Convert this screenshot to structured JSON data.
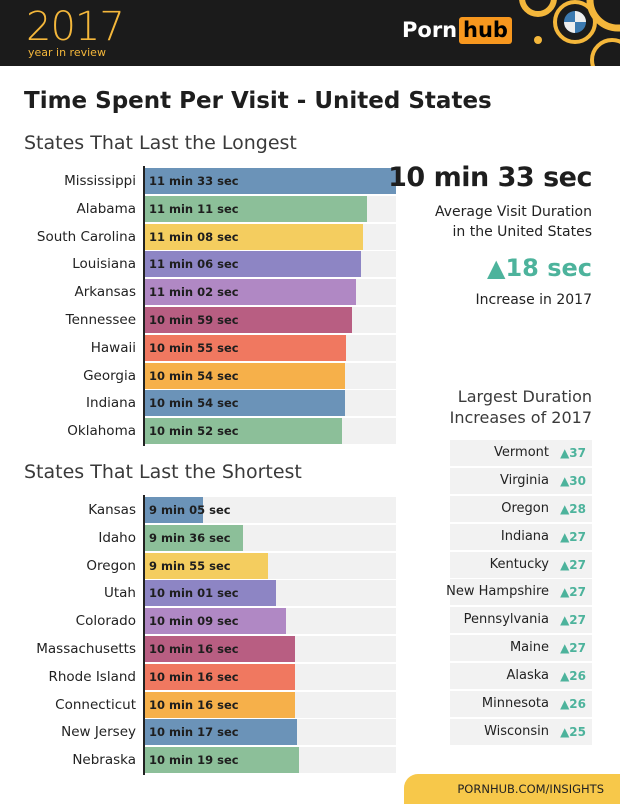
{
  "header": {
    "year": "2017",
    "year_sub": "year in review",
    "brand_left": "Porn",
    "brand_right": "hub"
  },
  "title": "Time Spent Per Visit - United States",
  "stats": {
    "average": "10 min 33 sec",
    "average_desc_line1": "Average Visit Duration",
    "average_desc_line2": "in the United States",
    "increase": "▲18 sec",
    "increase_desc": "Increase in 2017"
  },
  "increases": {
    "title_line1": "Largest Duration",
    "title_line2": "Increases of 2017",
    "items": [
      {
        "state": "Vermont",
        "value": "▲37"
      },
      {
        "state": "Virginia",
        "value": "▲30"
      },
      {
        "state": "Oregon",
        "value": "▲28"
      },
      {
        "state": "Indiana",
        "value": "▲27"
      },
      {
        "state": "Kentucky",
        "value": "▲27"
      },
      {
        "state": "New Hampshire",
        "value": "▲27"
      },
      {
        "state": "Pennsylvania",
        "value": "▲27"
      },
      {
        "state": "Maine",
        "value": "▲27"
      },
      {
        "state": "Alaska",
        "value": "▲26"
      },
      {
        "state": "Minnesota",
        "value": "▲26"
      },
      {
        "state": "Wisconsin",
        "value": "▲25"
      }
    ]
  },
  "footer": "PORNHUB.COM/INSIGHTS",
  "colors": {
    "palette": [
      "#6b93b8",
      "#8cbf99",
      "#f4cd5f",
      "#8d85c4",
      "#b088c4",
      "#b85e82",
      "#f07860",
      "#f6b04a",
      "#6b93b8",
      "#8cbf99"
    ],
    "accent": "#4db39c",
    "header_bg": "#1b1b1b"
  },
  "chart_data": [
    {
      "type": "bar",
      "orientation": "horizontal",
      "title": "States That Last the Longest",
      "categories": [
        "Mississippi",
        "Alabama",
        "South Carolina",
        "Louisiana",
        "Arkansas",
        "Tennessee",
        "Hawaii",
        "Georgia",
        "Indiana",
        "Oklahoma"
      ],
      "values": [
        693,
        671,
        668,
        666,
        662,
        659,
        655,
        654,
        654,
        652
      ],
      "labels": [
        "11 min 33 sec",
        "11 min 11 sec",
        "11 min 08 sec",
        "11 min 06 sec",
        "11 min 02 sec",
        "10 min 59 sec",
        "10 min 55 sec",
        "10 min 54 sec",
        "10 min 54 sec",
        "10 min 52 sec"
      ],
      "unit": "seconds"
    },
    {
      "type": "bar",
      "orientation": "horizontal",
      "title": "States That Last the Shortest",
      "categories": [
        "Kansas",
        "Idaho",
        "Oregon",
        "Utah",
        "Colorado",
        "Massachusetts",
        "Rhode Island",
        "Connecticut",
        "New Jersey",
        "Nebraska"
      ],
      "values": [
        545,
        576,
        595,
        601,
        609,
        616,
        616,
        616,
        617,
        619
      ],
      "labels": [
        "9 min 05 sec",
        "9 min 36 sec",
        "9 min 55 sec",
        "10 min 01 sec",
        "10 min 09 sec",
        "10 min 16 sec",
        "10 min 16 sec",
        "10 min 16 sec",
        "10 min 17 sec",
        "10 min 19 sec"
      ],
      "unit": "seconds"
    }
  ]
}
